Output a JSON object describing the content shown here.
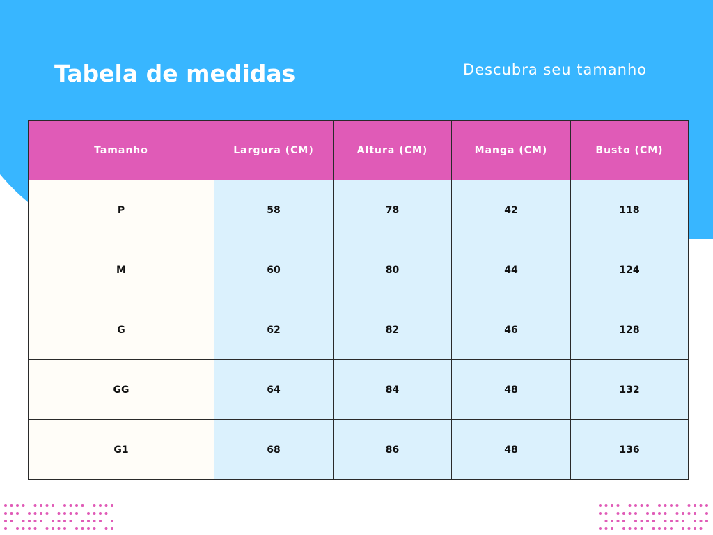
{
  "header": {
    "title": "Tabela de medidas",
    "subtitle": "Descubra seu tamanho"
  },
  "table": {
    "columns": [
      "Tamanho",
      "Largura (CM)",
      "Altura (CM)",
      "Manga (CM)",
      "Busto (CM)"
    ],
    "rows": [
      [
        "P",
        "58",
        "78",
        "42",
        "118"
      ],
      [
        "M",
        "60",
        "80",
        "44",
        "124"
      ],
      [
        "G",
        "62",
        "82",
        "46",
        "128"
      ],
      [
        "GG",
        "64",
        "84",
        "48",
        "132"
      ],
      [
        "G1",
        "68",
        "86",
        "48",
        "136"
      ]
    ]
  }
}
